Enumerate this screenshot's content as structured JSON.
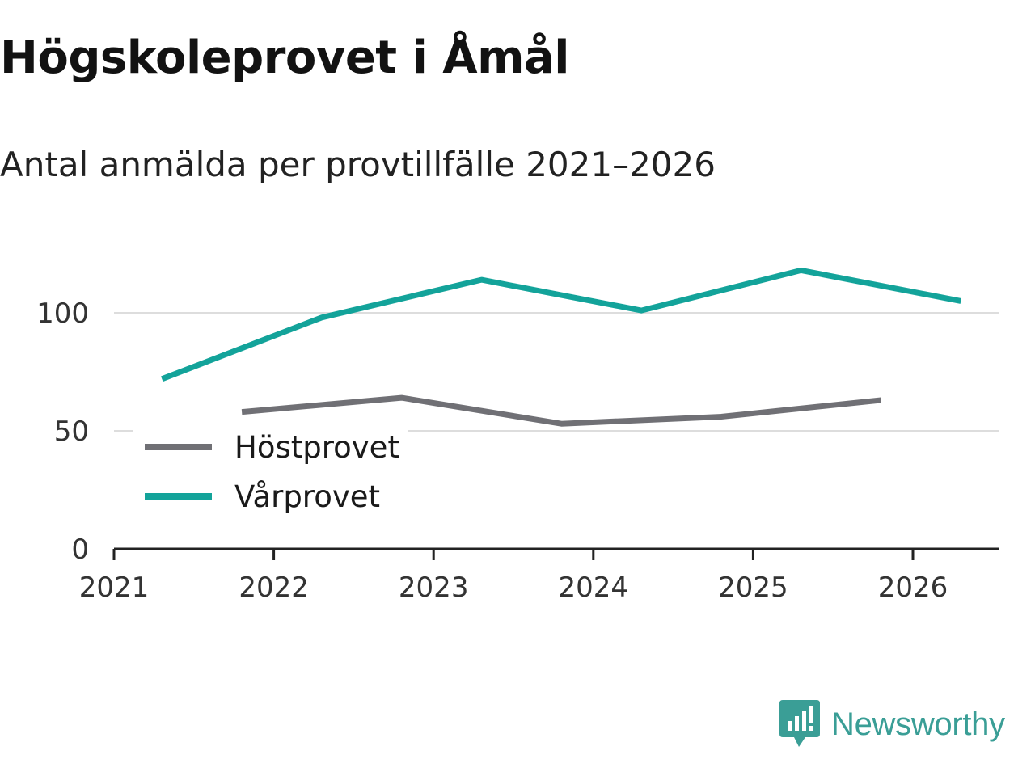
{
  "title": "Högskoleprovet i Åmål",
  "subtitle": "Antal anmälda per provtillfälle 2021–2026",
  "brand": {
    "name": "Newsworthy",
    "icon": "newsworthy-logo-icon",
    "color": "#3a9e96"
  },
  "chart_data": {
    "type": "line",
    "title": "Högskoleprovet i Åmål",
    "subtitle": "Antal anmälda per provtillfälle 2021–2026",
    "xlabel": "",
    "ylabel": "",
    "xlim": [
      2021,
      2026.5
    ],
    "ylim": [
      0,
      120
    ],
    "x_ticks": [
      2021,
      2022,
      2023,
      2024,
      2025,
      2026
    ],
    "x_tick_labels": [
      "2021",
      "2022",
      "2023",
      "2024",
      "2025",
      "2026"
    ],
    "y_ticks": [
      0,
      50,
      100
    ],
    "y_tick_labels": [
      "0",
      "50",
      "100"
    ],
    "grid": true,
    "legend_position": "bottom-left",
    "series": [
      {
        "name": "Höstprovet",
        "color": "#707075",
        "x": [
          2021.8,
          2022.8,
          2023.8,
          2024.8,
          2025.8
        ],
        "values": [
          58,
          64,
          53,
          56,
          63
        ]
      },
      {
        "name": "Vårprovet",
        "color": "#13a39a",
        "x": [
          2021.3,
          2022.3,
          2023.3,
          2024.3,
          2025.3,
          2026.3
        ],
        "values": [
          72,
          98,
          114,
          101,
          118,
          105
        ]
      }
    ]
  }
}
